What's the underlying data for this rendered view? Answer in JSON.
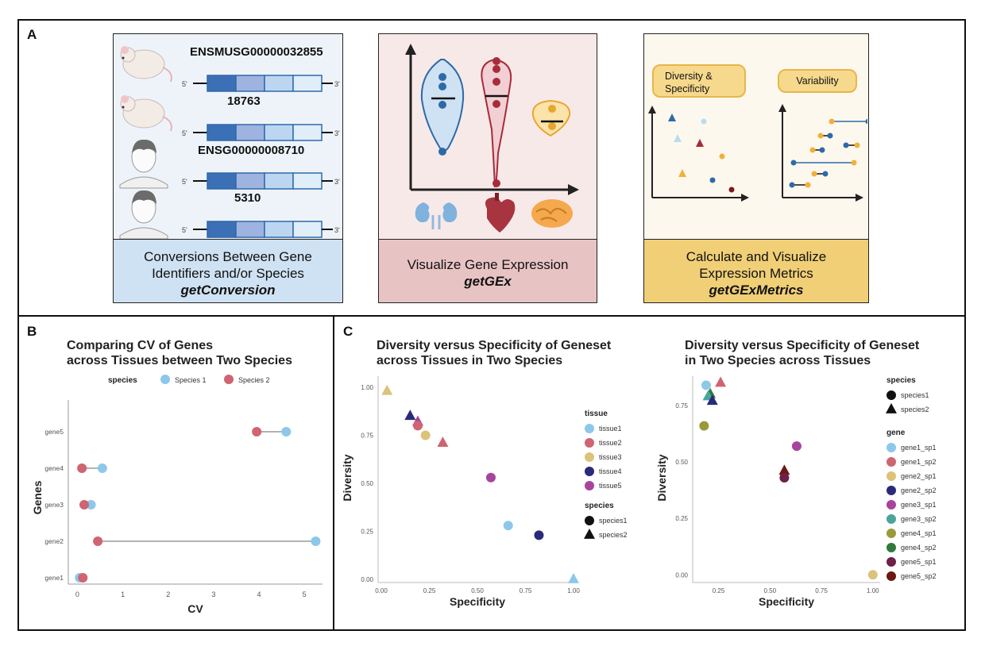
{
  "panels": {
    "a": "A",
    "b": "B",
    "c": "C"
  },
  "conversion": {
    "ids": [
      "ENSMUSG00000032855",
      "18763",
      "ENSG00000008710",
      "5310"
    ],
    "prime5": "5'",
    "prime3": "3'",
    "title_line1": "Conversions Between Gene",
    "title_line2": "Identifiers and/or Species",
    "function": "getConversion"
  },
  "visualize": {
    "title": "Visualize Gene Expression",
    "function": "getGEx"
  },
  "metrics": {
    "pill1": "Diversity & Specificity",
    "pill2": "Variability",
    "title_line1": "Calculate and Visualize",
    "title_line2": "Expression Metrics",
    "function": "getGExMetrics"
  },
  "colors": {
    "species1": "#8dc8ea",
    "species2": "#cf6472",
    "tissue1": "#8dc8ea",
    "tissue2": "#cf6472",
    "tissue3": "#dcc27a",
    "tissue4": "#2a2a7a",
    "tissue5": "#a7449c"
  },
  "chart_data": [
    {
      "type": "dumbbell",
      "title_line1": "Comparing CV of Genes",
      "title_line2": "across Tissues between Two Species",
      "legend_title": "species",
      "legend": [
        "Species 1",
        "Species 2"
      ],
      "xlabel": "CV",
      "ylabel": "Genes",
      "xticks": [
        "0",
        "1",
        "2",
        "3",
        "4",
        "5"
      ],
      "xlim": [
        -0.2,
        5.4
      ],
      "categories": [
        "gene5",
        "gene4",
        "gene3",
        "gene2",
        "gene1"
      ],
      "series": [
        {
          "name": "Species 1",
          "values": [
            4.6,
            0.55,
            0.3,
            5.25,
            0.05
          ]
        },
        {
          "name": "Species 2",
          "values": [
            3.95,
            0.1,
            0.15,
            0.45,
            0.12
          ]
        }
      ]
    },
    {
      "type": "scatter",
      "title_line1": "Diversity versus Specificity of Geneset",
      "title_line2": "across Tissues in Two Species",
      "xlabel": "Specificity",
      "ylabel": "Diversity",
      "xticks": [
        "0.00",
        "0.25",
        "0.50",
        "0.75",
        "1.00"
      ],
      "yticks": [
        "0.00",
        "0.25",
        "0.50",
        "0.75",
        "1.00"
      ],
      "legend_tissue_title": "tissue",
      "legend_tissue": [
        "tissue1",
        "tissue2",
        "tissue3",
        "tissue4",
        "tissue5"
      ],
      "legend_species_title": "species",
      "legend_species": [
        "species1",
        "species2"
      ],
      "points": [
        {
          "x": 0.03,
          "y": 0.98,
          "tissue": "tissue3",
          "species": "species2"
        },
        {
          "x": 0.15,
          "y": 0.85,
          "tissue": "tissue4",
          "species": "species2"
        },
        {
          "x": 0.19,
          "y": 0.82,
          "tissue": "tissue5",
          "species": "species2"
        },
        {
          "x": 0.19,
          "y": 0.8,
          "tissue": "tissue2",
          "species": "species1"
        },
        {
          "x": 0.23,
          "y": 0.75,
          "tissue": "tissue3",
          "species": "species1"
        },
        {
          "x": 0.32,
          "y": 0.71,
          "tissue": "tissue2",
          "species": "species2"
        },
        {
          "x": 0.57,
          "y": 0.53,
          "tissue": "tissue5",
          "species": "species1"
        },
        {
          "x": 0.66,
          "y": 0.28,
          "tissue": "tissue1",
          "species": "species1"
        },
        {
          "x": 0.82,
          "y": 0.23,
          "tissue": "tissue4",
          "species": "species1"
        },
        {
          "x": 1.0,
          "y": 0.0,
          "tissue": "tissue1",
          "species": "species2"
        }
      ]
    },
    {
      "type": "scatter",
      "title_line1": "Diversity versus Specificity of Geneset",
      "title_line2": "in Two Species across Tissues",
      "xlabel": "Specificity",
      "ylabel": "Diversity",
      "xticks": [
        "0.25",
        "0.50",
        "0.75",
        "1.00"
      ],
      "yticks": [
        "0.00",
        "0.25",
        "0.50",
        "0.75"
      ],
      "legend_species_title": "species",
      "legend_species": [
        "species1",
        "species2"
      ],
      "legend_gene_title": "gene",
      "genes": [
        {
          "name": "gene1_sp1",
          "color": "#8dc8ea"
        },
        {
          "name": "gene1_sp2",
          "color": "#cf6472"
        },
        {
          "name": "gene2_sp1",
          "color": "#dcc27a"
        },
        {
          "name": "gene2_sp2",
          "color": "#2a2a7a"
        },
        {
          "name": "gene3_sp1",
          "color": "#a7449c"
        },
        {
          "name": "gene3_sp2",
          "color": "#4aa59a"
        },
        {
          "name": "gene4_sp1",
          "color": "#9a9a3a"
        },
        {
          "name": "gene4_sp2",
          "color": "#2f7a3a"
        },
        {
          "name": "gene5_sp1",
          "color": "#6e1f4a"
        },
        {
          "name": "gene5_sp2",
          "color": "#6a1a10"
        }
      ],
      "points": [
        {
          "x": 0.19,
          "y": 0.84,
          "gene": "gene1_sp1",
          "species": "species1"
        },
        {
          "x": 0.26,
          "y": 0.85,
          "gene": "gene1_sp2",
          "species": "species2"
        },
        {
          "x": 0.21,
          "y": 0.8,
          "gene": "gene4_sp2",
          "species": "species2"
        },
        {
          "x": 0.2,
          "y": 0.79,
          "gene": "gene3_sp2",
          "species": "species2"
        },
        {
          "x": 0.22,
          "y": 0.77,
          "gene": "gene2_sp2",
          "species": "species2"
        },
        {
          "x": 0.18,
          "y": 0.66,
          "gene": "gene4_sp1",
          "species": "species1"
        },
        {
          "x": 0.63,
          "y": 0.57,
          "gene": "gene3_sp1",
          "species": "species1"
        },
        {
          "x": 0.57,
          "y": 0.46,
          "gene": "gene5_sp2",
          "species": "species2"
        },
        {
          "x": 0.57,
          "y": 0.43,
          "gene": "gene5_sp1",
          "species": "species1"
        },
        {
          "x": 1.0,
          "y": 0.0,
          "gene": "gene2_sp1",
          "species": "species1"
        }
      ]
    }
  ]
}
